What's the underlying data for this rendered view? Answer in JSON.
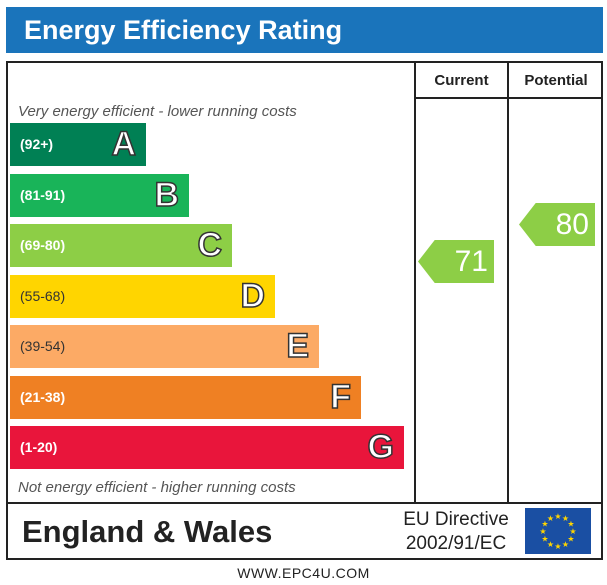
{
  "header": {
    "title": "Energy Efficiency Rating"
  },
  "columns": {
    "current": "Current",
    "potential": "Potential"
  },
  "notes": {
    "top": "Very energy efficient - lower running costs",
    "bottom": "Not energy efficient - higher running costs"
  },
  "bands": [
    {
      "range": "(92+)",
      "letter": "A",
      "color": "#008054"
    },
    {
      "range": "(81-91)",
      "letter": "B",
      "color": "#19b459"
    },
    {
      "range": "(69-80)",
      "letter": "C",
      "color": "#8dce46"
    },
    {
      "range": "(55-68)",
      "letter": "D",
      "color": "#ffd500"
    },
    {
      "range": "(39-54)",
      "letter": "E",
      "color": "#fcaa65"
    },
    {
      "range": "(21-38)",
      "letter": "F",
      "color": "#ef8023"
    },
    {
      "range": "(1-20)",
      "letter": "G",
      "color": "#e9153b"
    }
  ],
  "ratings": {
    "current": {
      "value": "71",
      "color": "#8dce46"
    },
    "potential": {
      "value": "80",
      "color": "#8dce46"
    }
  },
  "footer": {
    "country": "England & Wales",
    "directive_line1": "EU Directive",
    "directive_line2": "2002/91/EC",
    "flag_icon": "eu-flag-icon"
  },
  "website": "WWW.EPC4U.COM"
}
